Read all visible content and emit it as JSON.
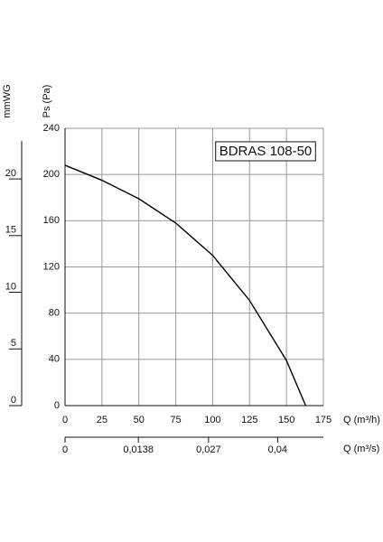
{
  "chart_data": {
    "type": "line",
    "annotation": "BDRAS 108-50",
    "xlabel": "Q (m³/h)",
    "ylabel": "Ps (Pa)",
    "y2label": "mmWG",
    "x2label": "Q (m³/s)",
    "x": [
      0,
      25,
      50,
      75,
      100,
      125,
      150,
      163
    ],
    "values": [
      208,
      195,
      179,
      158,
      130,
      91,
      39,
      0
    ],
    "color": "#000000",
    "xlim": [
      0,
      175
    ],
    "xticks": [
      0,
      25,
      50,
      75,
      100,
      125,
      150,
      175
    ],
    "ylim": [
      0,
      240
    ],
    "yticks": [
      0,
      40,
      80,
      120,
      160,
      200,
      240
    ],
    "y2lim": [
      0,
      24.47
    ],
    "y2ticks": [
      0,
      5,
      10,
      15,
      20
    ],
    "x2lim": [
      0,
      0.04861
    ],
    "x2ticks": [
      0,
      {
        "value": 0.0138,
        "label": "0,0138"
      },
      {
        "value": 0.027,
        "label": "0,027"
      },
      {
        "value": 0.04,
        "label": "0,04"
      }
    ],
    "grid": true
  }
}
